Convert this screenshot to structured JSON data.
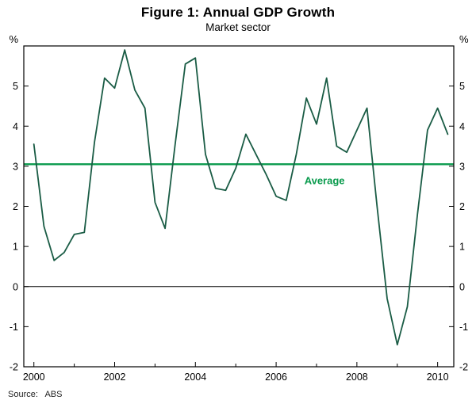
{
  "header": {
    "title": "Figure 1: Annual GDP Growth",
    "subtitle": "Market sector"
  },
  "footer": {
    "source": "Source:   ABS"
  },
  "colors": {
    "line": "#1a5c45",
    "average": "#089a4c",
    "axis": "#000000"
  },
  "chart_data": {
    "type": "line",
    "title": "Figure 1: Annual GDP Growth",
    "subtitle": "Market sector",
    "unit": "%",
    "x": [
      2000,
      2000.25,
      2000.5,
      2000.75,
      2001,
      2001.25,
      2001.5,
      2001.75,
      2002,
      2002.25,
      2002.5,
      2002.75,
      2003,
      2003.25,
      2003.5,
      2003.75,
      2004,
      2004.25,
      2004.5,
      2004.75,
      2005,
      2005.25,
      2005.5,
      2005.75,
      2006,
      2006.25,
      2006.5,
      2006.75,
      2007,
      2007.25,
      2007.5,
      2007.75,
      2008,
      2008.25,
      2008.5,
      2008.75,
      2009,
      2009.25,
      2009.5,
      2009.75,
      2010,
      2010.25
    ],
    "series": [
      {
        "name": "Annual GDP growth (market sector)",
        "values": [
          3.55,
          1.5,
          0.65,
          0.85,
          1.3,
          1.35,
          3.6,
          5.2,
          4.95,
          5.9,
          4.9,
          4.45,
          2.1,
          1.45,
          3.55,
          5.55,
          5.7,
          3.3,
          2.45,
          2.4,
          2.95,
          3.8,
          3.3,
          2.8,
          2.25,
          2.15,
          3.3,
          4.7,
          4.05,
          5.2,
          3.5,
          3.35,
          3.9,
          4.45,
          2.0,
          -0.3,
          -1.45,
          -0.5,
          1.8,
          3.9,
          4.45,
          3.8
        ]
      }
    ],
    "average": 3.05,
    "average_label": {
      "text": "Average",
      "x": 2006.7,
      "y": 2.55
    },
    "xlim": [
      1999.75,
      2010.4
    ],
    "ylim": [
      -2,
      6
    ],
    "x_ticks": [
      2000,
      2002,
      2004,
      2006,
      2008,
      2010
    ],
    "x_minor_ticks": [
      2001,
      2003,
      2005,
      2007,
      2009
    ],
    "y_ticks": [
      -2,
      -1,
      0,
      1,
      2,
      3,
      4,
      5,
      6
    ],
    "y_tick_labels": [
      "-2",
      "-1",
      "0",
      "1",
      "2",
      "3",
      "4",
      "5",
      ""
    ],
    "grid": "none",
    "legend": "none",
    "source": "Source:   ABS"
  }
}
